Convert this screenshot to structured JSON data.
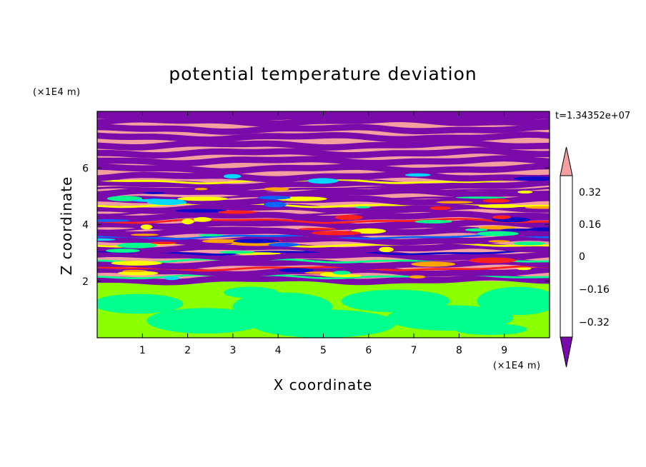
{
  "chart_data": {
    "type": "heatmap",
    "title": "potential temperature deviation",
    "xlabel": "X coordinate",
    "ylabel": "Z coordinate",
    "x_unit": "(×1E4 m)",
    "y_unit": "(×1E4 m)",
    "time_label": "t=1.34352e+07",
    "xlim": [
      0,
      10
    ],
    "ylim": [
      0,
      8
    ],
    "x_ticks": [
      "1",
      "2",
      "3",
      "4",
      "5",
      "6",
      "7",
      "8",
      "9"
    ],
    "y_ticks": [
      "2",
      "4",
      "6"
    ],
    "layers": [
      {
        "z_from": 0.0,
        "z_to": 2.0,
        "description_values": [
          0,
          -0.08
        ],
        "pattern": "mixed"
      },
      {
        "z_from": 2.0,
        "z_to": 8.0,
        "pattern": "stratified-bands"
      }
    ],
    "colorbar": {
      "levels": [
        -0.4,
        -0.32,
        -0.24,
        -0.16,
        -0.08,
        0,
        0.08,
        0.16,
        0.24,
        0.32,
        0.4
      ],
      "labels": [
        "0.32",
        "0.16",
        "0",
        "−0.16",
        "−0.32"
      ],
      "extend": "both",
      "colors": [
        "#7a0aaa",
        "#3a0aa0",
        "#0a0ac8",
        "#0a64ff",
        "#00d8ff",
        "#00ff8c",
        "#8cff00",
        "#ffff00",
        "#ffa500",
        "#ff5a00",
        "#ff2020",
        "#f5a0a0"
      ]
    }
  }
}
